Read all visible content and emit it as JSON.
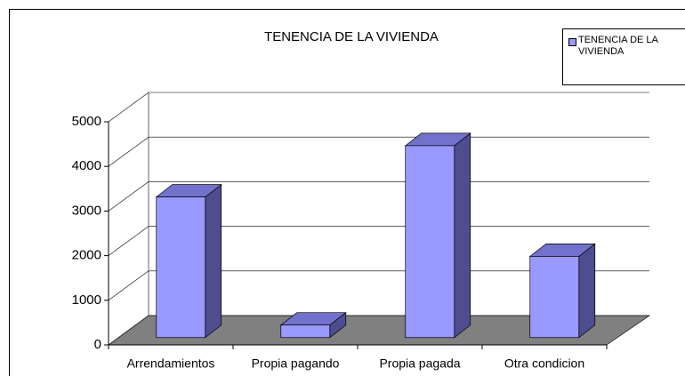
{
  "chart_data": {
    "type": "bar3d",
    "title": "TENENCIA DE LA VIVIENDA",
    "categories": [
      "Arrendamientos",
      "Propia pagando",
      "Propia pagada",
      "Otra condicion"
    ],
    "series": [
      {
        "name": "TENENCIA DE LA VIVIENDA",
        "color": "#9999ff",
        "values": [
          3150,
          280,
          4300,
          1820
        ]
      }
    ],
    "ylim": [
      0,
      5000
    ],
    "yticks": [
      0,
      1000,
      2000,
      3000,
      4000,
      5000
    ],
    "grid": true,
    "legend": "top-right"
  }
}
